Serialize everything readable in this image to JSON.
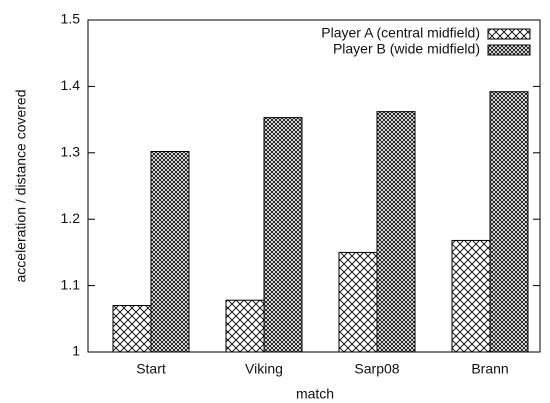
{
  "chart_data": {
    "type": "bar",
    "x_label": "match",
    "y_label": "acceleration / distance covered",
    "categories": [
      "Start",
      "Viking",
      "Sarp08",
      "Brann"
    ],
    "series": [
      {
        "name": "Player A (central midfield)",
        "color": "#000000",
        "values": [
          1.07,
          1.078,
          1.15,
          1.168
        ]
      },
      {
        "name": "Player B (wide midfield)",
        "color": "#000000",
        "values": [
          1.302,
          1.353,
          1.362,
          1.392
        ]
      }
    ],
    "ylim": [
      1,
      1.5
    ],
    "yticks": [
      1,
      1.1,
      1.2,
      1.3,
      1.4,
      1.5
    ],
    "legend": "upper right"
  }
}
